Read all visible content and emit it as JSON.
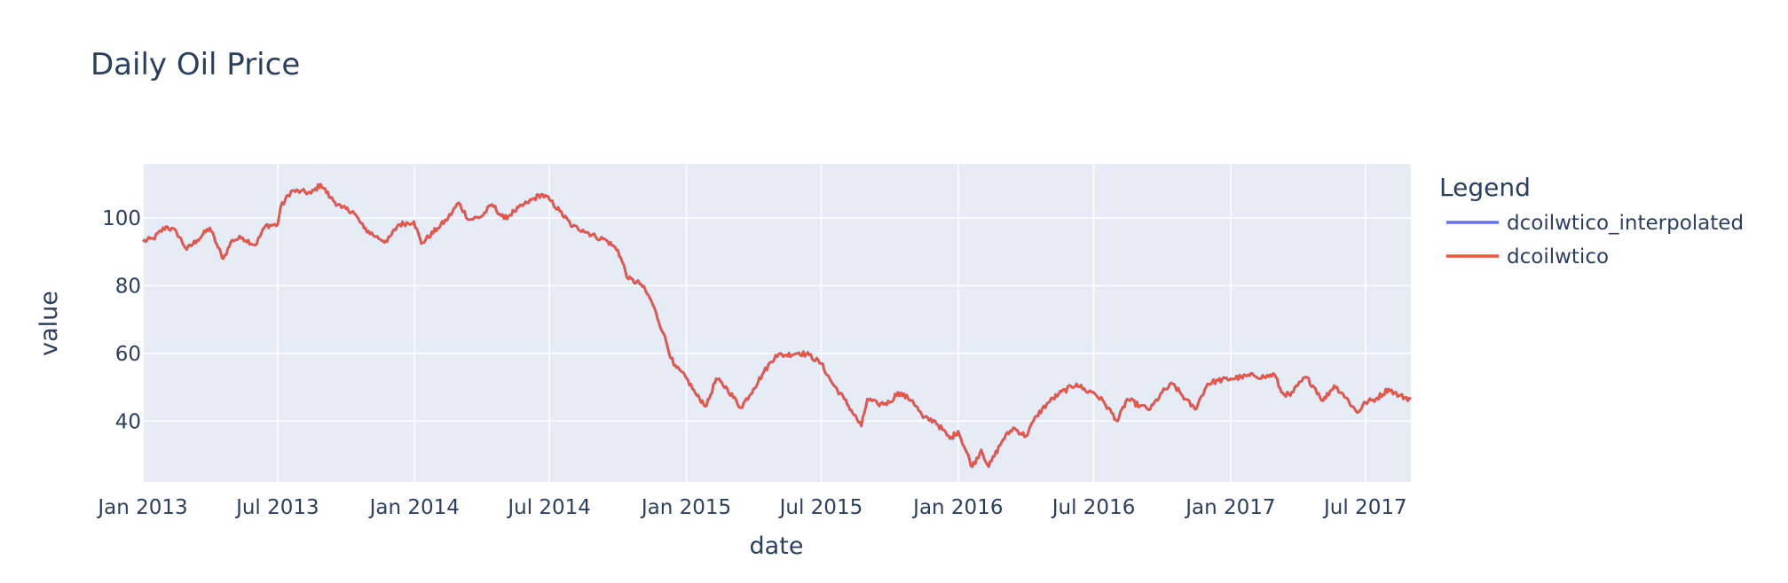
{
  "chart_data": {
    "type": "line",
    "title": "Daily Oil Price",
    "xlabel": "date",
    "ylabel": "value",
    "x_ticks": [
      {
        "date": "2013-01-01",
        "label": "Jan 2013"
      },
      {
        "date": "2013-07-01",
        "label": "Jul 2013"
      },
      {
        "date": "2014-01-01",
        "label": "Jan 2014"
      },
      {
        "date": "2014-07-01",
        "label": "Jul 2014"
      },
      {
        "date": "2015-01-01",
        "label": "Jan 2015"
      },
      {
        "date": "2015-07-01",
        "label": "Jul 2015"
      },
      {
        "date": "2016-01-01",
        "label": "Jan 2016"
      },
      {
        "date": "2016-07-01",
        "label": "Jul 2016"
      },
      {
        "date": "2017-01-01",
        "label": "Jan 2017"
      },
      {
        "date": "2017-07-01",
        "label": "Jul 2017"
      }
    ],
    "y_ticks": [
      40,
      60,
      80,
      100
    ],
    "xlim": [
      "2013-01-01",
      "2017-08-31"
    ],
    "ylim": [
      22,
      116
    ],
    "grid": true,
    "legend": {
      "title": "Legend",
      "position": "right"
    },
    "background": "#e5ecf6",
    "series": [
      {
        "name": "dcoilwtico_interpolated",
        "color": "#636efa"
      },
      {
        "name": "dcoilwtico",
        "color": "#ef553b"
      }
    ],
    "points": [
      [
        "2013-01-01",
        93.1
      ],
      [
        "2013-01-15",
        93.9
      ],
      [
        "2013-02-01",
        97.5
      ],
      [
        "2013-02-15",
        95.9
      ],
      [
        "2013-03-01",
        90.7
      ],
      [
        "2013-03-15",
        93.5
      ],
      [
        "2013-04-01",
        97.1
      ],
      [
        "2013-04-12",
        91.3
      ],
      [
        "2013-04-19",
        88.0
      ],
      [
        "2013-05-01",
        93.5
      ],
      [
        "2013-05-15",
        94.2
      ],
      [
        "2013-06-01",
        92.0
      ],
      [
        "2013-06-15",
        97.8
      ],
      [
        "2013-07-01",
        98.0
      ],
      [
        "2013-07-05",
        103.2
      ],
      [
        "2013-07-19",
        107.9
      ],
      [
        "2013-08-01",
        107.9
      ],
      [
        "2013-08-15",
        107.3
      ],
      [
        "2013-08-28",
        110.0
      ],
      [
        "2013-09-10",
        106.0
      ],
      [
        "2013-09-25",
        103.0
      ],
      [
        "2013-10-10",
        102.0
      ],
      [
        "2013-10-25",
        97.0
      ],
      [
        "2013-11-10",
        94.5
      ],
      [
        "2013-11-25",
        93.0
      ],
      [
        "2013-12-10",
        98.0
      ],
      [
        "2013-12-31",
        99.0
      ],
      [
        "2014-01-10",
        92.5
      ],
      [
        "2014-02-01",
        97.0
      ],
      [
        "2014-02-15",
        100.0
      ],
      [
        "2014-03-01",
        104.5
      ],
      [
        "2014-03-15",
        99.5
      ],
      [
        "2014-04-01",
        100.5
      ],
      [
        "2014-04-15",
        104.0
      ],
      [
        "2014-05-01",
        99.8
      ],
      [
        "2014-05-15",
        102.0
      ],
      [
        "2014-06-01",
        104.5
      ],
      [
        "2014-06-20",
        107.0
      ],
      [
        "2014-07-01",
        105.5
      ],
      [
        "2014-07-15",
        102.0
      ],
      [
        "2014-08-01",
        97.5
      ],
      [
        "2014-08-15",
        96.5
      ],
      [
        "2014-09-01",
        94.5
      ],
      [
        "2014-09-15",
        93.5
      ],
      [
        "2014-10-01",
        90.5
      ],
      [
        "2014-10-15",
        82.0
      ],
      [
        "2014-11-01",
        80.5
      ],
      [
        "2014-11-15",
        75.5
      ],
      [
        "2014-12-01",
        66.0
      ],
      [
        "2014-12-15",
        56.5
      ],
      [
        "2015-01-01",
        52.7
      ],
      [
        "2015-01-15",
        47.5
      ],
      [
        "2015-01-28",
        44.5
      ],
      [
        "2015-02-10",
        52.5
      ],
      [
        "2015-02-25",
        49.5
      ],
      [
        "2015-03-15",
        44.0
      ],
      [
        "2015-04-01",
        49.5
      ],
      [
        "2015-04-15",
        54.5
      ],
      [
        "2015-05-01",
        59.5
      ],
      [
        "2015-05-15",
        59.5
      ],
      [
        "2015-06-01",
        60.2
      ],
      [
        "2015-06-15",
        59.5
      ],
      [
        "2015-07-01",
        57.0
      ],
      [
        "2015-07-15",
        51.5
      ],
      [
        "2015-08-01",
        46.5
      ],
      [
        "2015-08-24",
        38.5
      ],
      [
        "2015-09-01",
        46.5
      ],
      [
        "2015-09-15",
        45.0
      ],
      [
        "2015-10-01",
        45.5
      ],
      [
        "2015-10-12",
        48.5
      ],
      [
        "2015-11-01",
        46.0
      ],
      [
        "2015-11-15",
        41.0
      ],
      [
        "2015-12-01",
        40.0
      ],
      [
        "2015-12-21",
        34.8
      ],
      [
        "2016-01-01",
        37.0
      ],
      [
        "2016-01-20",
        26.5
      ],
      [
        "2016-02-01",
        31.5
      ],
      [
        "2016-02-11",
        26.5
      ],
      [
        "2016-03-01",
        34.5
      ],
      [
        "2016-03-15",
        38.0
      ],
      [
        "2016-04-01",
        35.5
      ],
      [
        "2016-04-15",
        41.5
      ],
      [
        "2016-05-01",
        45.5
      ],
      [
        "2016-05-15",
        48.0
      ],
      [
        "2016-06-08",
        51.0
      ],
      [
        "2016-06-20",
        49.0
      ],
      [
        "2016-07-01",
        48.5
      ],
      [
        "2016-07-15",
        45.5
      ],
      [
        "2016-08-02",
        40.0
      ],
      [
        "2016-08-15",
        46.5
      ],
      [
        "2016-09-01",
        44.5
      ],
      [
        "2016-09-15",
        43.5
      ],
      [
        "2016-10-01",
        48.5
      ],
      [
        "2016-10-15",
        51.0
      ],
      [
        "2016-11-01",
        46.5
      ],
      [
        "2016-11-14",
        43.5
      ],
      [
        "2016-12-01",
        51.0
      ],
      [
        "2016-12-15",
        52.0
      ],
      [
        "2017-01-01",
        52.5
      ],
      [
        "2017-01-15",
        53.0
      ],
      [
        "2017-02-01",
        53.5
      ],
      [
        "2017-02-15",
        53.0
      ],
      [
        "2017-03-01",
        53.8
      ],
      [
        "2017-03-10",
        48.5
      ],
      [
        "2017-03-22",
        47.5
      ],
      [
        "2017-04-01",
        50.5
      ],
      [
        "2017-04-12",
        53.0
      ],
      [
        "2017-04-25",
        49.5
      ],
      [
        "2017-05-05",
        46.0
      ],
      [
        "2017-05-20",
        50.5
      ],
      [
        "2017-06-01",
        48.0
      ],
      [
        "2017-06-20",
        42.5
      ],
      [
        "2017-07-01",
        45.5
      ],
      [
        "2017-07-15",
        46.5
      ],
      [
        "2017-08-01",
        49.5
      ],
      [
        "2017-08-15",
        47.5
      ],
      [
        "2017-08-31",
        46.5
      ]
    ]
  }
}
